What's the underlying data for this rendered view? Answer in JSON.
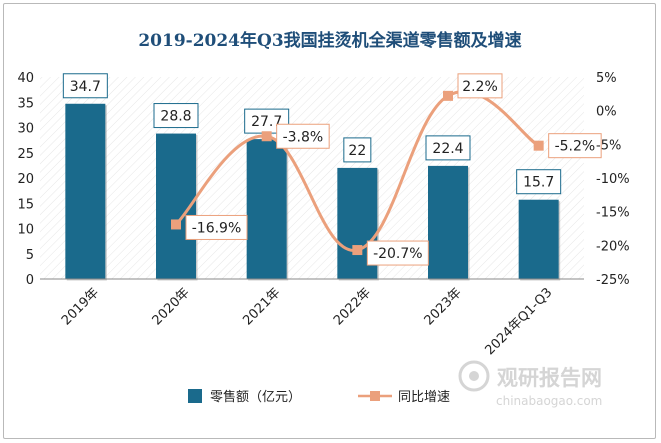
{
  "chart_data": {
    "type": "bar",
    "title": "2019-2024年Q3我国挂烫机全渠道零售额及增速",
    "categories": [
      "2019年",
      "2020年",
      "2021年",
      "2022年",
      "2023年",
      "2024年Q1-Q3"
    ],
    "series": [
      {
        "name": "零售额（亿元）",
        "type": "bar",
        "axis": "left",
        "values": [
          34.7,
          28.8,
          27.7,
          22,
          22.4,
          15.7
        ],
        "labels": [
          "34.7",
          "28.8",
          "27.7",
          "22",
          "22.4",
          "15.7"
        ]
      },
      {
        "name": "同比增速",
        "type": "line",
        "axis": "right",
        "values": [
          null,
          -16.9,
          -3.8,
          -20.7,
          2.2,
          -5.2
        ],
        "labels": [
          "",
          "-16.9%",
          "-3.8%",
          "-20.7%",
          "2.2%",
          "-5.2%"
        ]
      }
    ],
    "y_left": {
      "min": 0,
      "max": 40,
      "step": 5,
      "ticks": [
        "0",
        "5",
        "10",
        "15",
        "20",
        "25",
        "30",
        "35",
        "40"
      ]
    },
    "y_right": {
      "min": -25,
      "max": 5,
      "step": 5,
      "ticks": [
        "-25%",
        "-20%",
        "-15%",
        "-10%",
        "-5%",
        "0%",
        "5%"
      ]
    },
    "legend_position": "bottom",
    "grid": false,
    "colors": {
      "bar": "#1a6a8c",
      "line": "#eba07c",
      "title": "#1f4e79",
      "label_border": "#1a6a8c",
      "line_label_border": "#eba07c"
    }
  },
  "watermark": {
    "brand": "观研报告网",
    "url": "chinabaogao.com"
  }
}
